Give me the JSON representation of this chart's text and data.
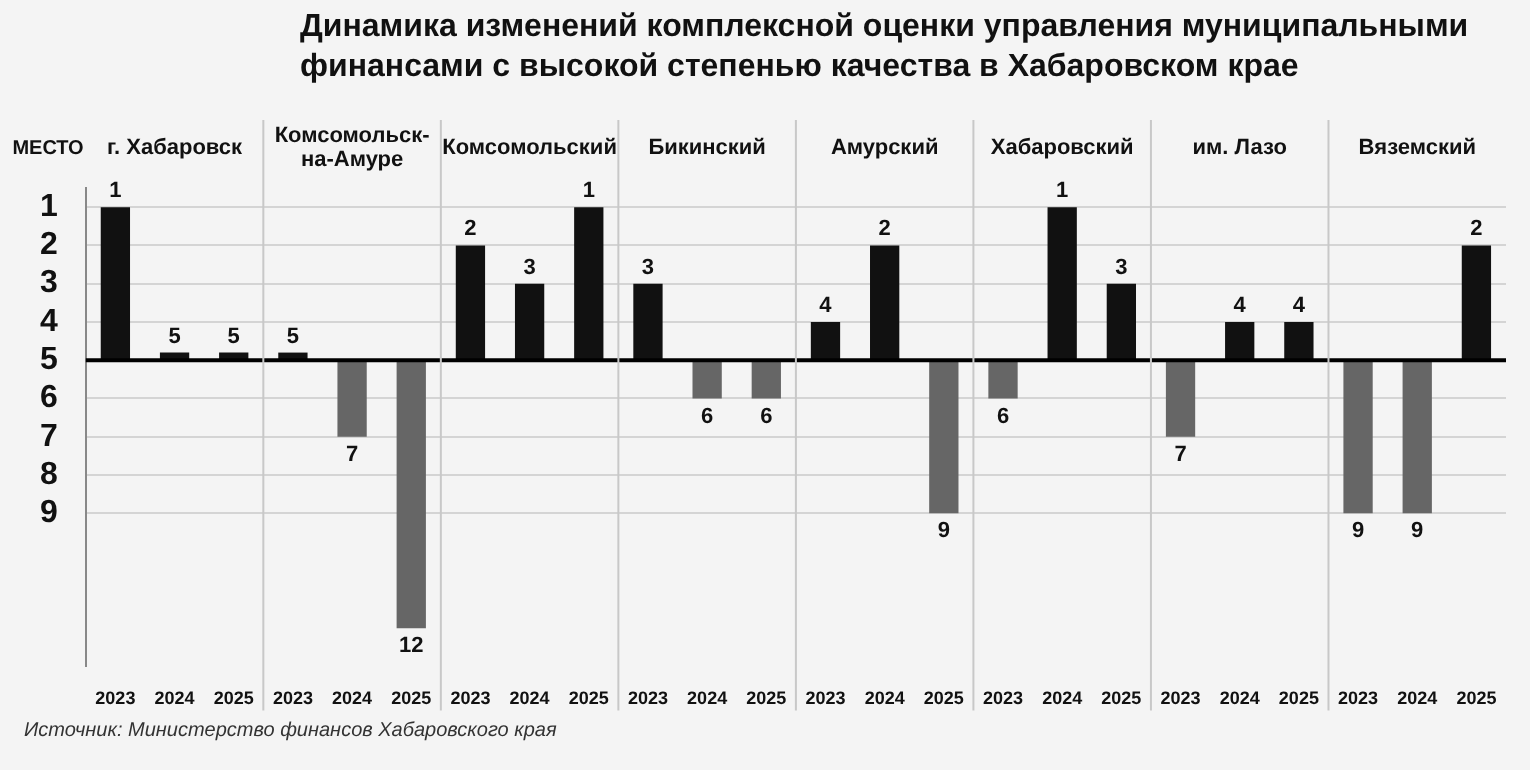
{
  "chart_data": {
    "type": "bar",
    "title": "Динамика изменений комплексной оценки управления муниципальными финансами с высокой степенью качества в Хабаровском крае",
    "ylabel": "МЕСТО",
    "categories": [
      "2023",
      "2024",
      "2025",
      "2023",
      "2024",
      "2025",
      "2023",
      "2024",
      "2025",
      "2023",
      "2024",
      "2025",
      "2023",
      "2024",
      "2025",
      "2023",
      "2024",
      "2025",
      "2023",
      "2024",
      "2025",
      "2023",
      "2024",
      "2025"
    ],
    "values": [
      -4,
      -0.2,
      -0.2,
      -0.2,
      2,
      7,
      -3,
      -2,
      -4,
      -2,
      1,
      1,
      -1,
      -3,
      4,
      1,
      -4,
      -2,
      2,
      -1,
      -1,
      4,
      4,
      -3
    ],
    "base": [
      5,
      5,
      5,
      5,
      5,
      5,
      5,
      5,
      5,
      5,
      5,
      5,
      5,
      5,
      5,
      5,
      5,
      5,
      5,
      5,
      5,
      5,
      5,
      5
    ],
    "value_labels": [
      "1",
      "5",
      "5",
      "5",
      "7",
      "12",
      "2",
      "3",
      "1",
      "3",
      "6",
      "6",
      "4",
      "2",
      "9",
      "6",
      "1",
      "3",
      "7",
      "4",
      "4",
      "9",
      "9",
      "2"
    ],
    "colors": [
      "#111111",
      "#111111",
      "#111111",
      "#111111",
      "#666666",
      "#666666",
      "#111111",
      "#111111",
      "#111111",
      "#111111",
      "#666666",
      "#666666",
      "#111111",
      "#111111",
      "#666666",
      "#666666",
      "#111111",
      "#111111",
      "#666666",
      "#111111",
      "#111111",
      "#666666",
      "#666666",
      "#111111"
    ],
    "ylim": [
      13,
      0.5
    ],
    "yticks": [
      1,
      2,
      3,
      4,
      5,
      6,
      7,
      8,
      9
    ],
    "ref_lines": [
      {
        "axis": "y",
        "value": 5,
        "color": "#000000"
      }
    ],
    "grid": "y",
    "legend": false,
    "annotations": [
      "г. Хабаровск",
      "Комсомольск-на-Амуре",
      "Комсомольский",
      "Бикинский",
      "Амурский",
      "Хабаровский",
      "им. Лазо",
      "Вяземский",
      "Источник: Министерство финансов Хабаровского края"
    ]
  }
}
